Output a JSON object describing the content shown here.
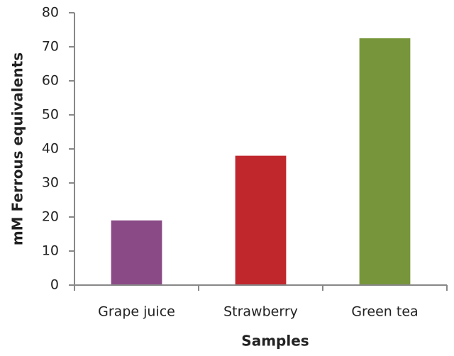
{
  "chart_data": {
    "type": "bar",
    "x_label": "Samples",
    "y_label": "mM Ferrous equivalents",
    "categories": [
      "Grape juice",
      "Strawberry",
      "Green tea"
    ],
    "values": [
      19,
      38,
      72.5
    ],
    "colors": [
      "#8a4a86",
      "#c0272d",
      "#77963b"
    ],
    "ylim": [
      0,
      80
    ],
    "yticks": [
      0,
      10,
      20,
      30,
      40,
      50,
      60,
      70,
      80
    ],
    "grid": false
  }
}
